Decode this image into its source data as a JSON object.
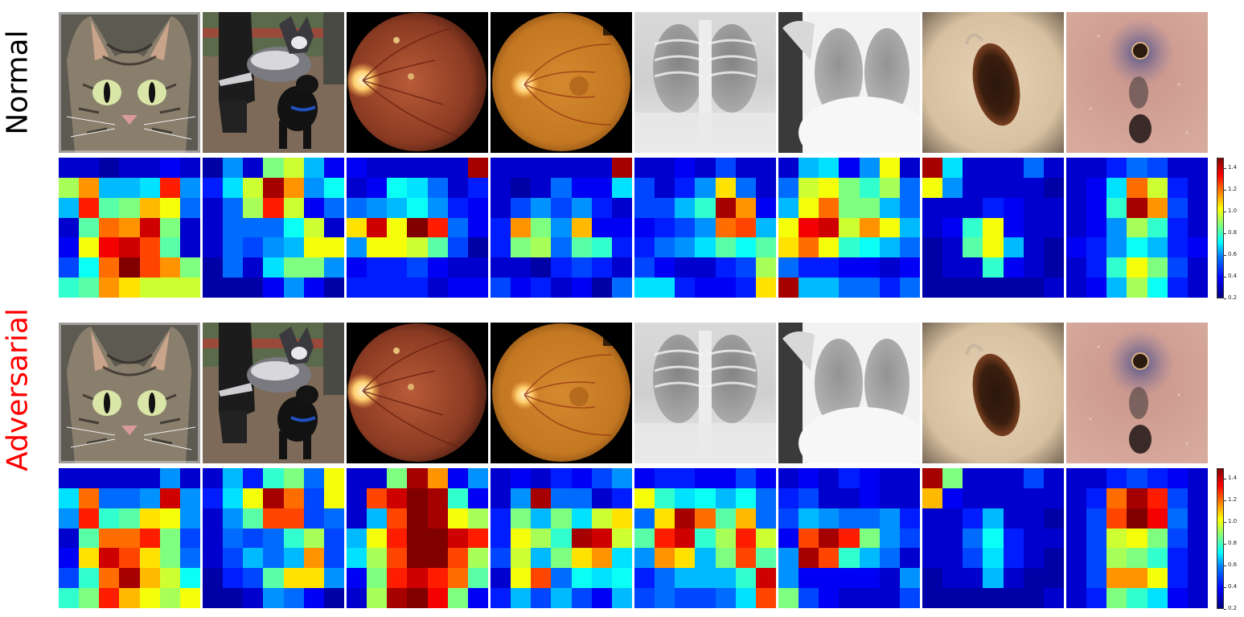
{
  "row_labels": {
    "normal": "Normal",
    "adversarial": "Adversarial"
  },
  "colors": {
    "adversarial_label": "#ff0000",
    "normal_label": "#000000"
  },
  "images": [
    "cat-photo",
    "dog-photo",
    "fundus-photo-1",
    "fundus-photo-2",
    "chest-xray-1",
    "chest-xray-2",
    "skin-lesion-1",
    "skin-lesion-2"
  ],
  "colorbar": {
    "ticks": [
      "1.4",
      "1.2",
      "1.0",
      "0.8",
      "0.6",
      "0.4",
      "0.2"
    ],
    "min": 0.2,
    "max": 1.5
  },
  "heatmaps": {
    "normal": [
      [
        [
          0.3,
          0.3,
          0.25,
          0.3,
          0.3,
          0.35,
          0.3
        ],
        [
          0.9,
          1.15,
          0.6,
          0.6,
          0.65,
          1.3,
          0.55
        ],
        [
          0.6,
          1.3,
          0.8,
          0.85,
          1.1,
          1.0,
          0.5
        ],
        [
          0.3,
          0.8,
          1.2,
          1.15,
          1.4,
          0.85,
          0.3
        ],
        [
          0.35,
          1.0,
          1.35,
          1.4,
          1.25,
          0.8,
          0.3
        ],
        [
          0.45,
          0.7,
          1.2,
          1.5,
          1.25,
          1.15,
          0.85
        ],
        [
          0.75,
          0.8,
          1.15,
          1.05,
          0.95,
          0.95,
          0.95
        ]
      ],
      [
        [
          0.25,
          0.55,
          0.3,
          0.85,
          0.95,
          0.6,
          0.35
        ],
        [
          0.4,
          0.65,
          0.95,
          1.45,
          1.15,
          0.55,
          0.7
        ],
        [
          0.3,
          0.5,
          0.9,
          1.3,
          0.95,
          0.35,
          0.5
        ],
        [
          0.3,
          0.5,
          0.5,
          0.5,
          0.7,
          0.95,
          0.3
        ],
        [
          0.3,
          0.5,
          0.45,
          0.55,
          0.6,
          1.0,
          1.0
        ],
        [
          0.25,
          0.5,
          0.3,
          0.65,
          0.85,
          0.85,
          0.55
        ],
        [
          0.25,
          0.25,
          0.25,
          0.35,
          0.55,
          0.35,
          0.25
        ]
      ],
      [
        [
          0.35,
          0.3,
          0.3,
          0.3,
          0.3,
          0.3,
          1.45
        ],
        [
          0.3,
          0.35,
          0.7,
          0.65,
          0.5,
          0.3,
          0.4
        ],
        [
          0.5,
          0.55,
          0.6,
          0.7,
          0.55,
          0.4,
          0.35
        ],
        [
          1.05,
          1.4,
          1.0,
          1.5,
          1.3,
          0.5,
          0.35
        ],
        [
          0.55,
          1.0,
          1.0,
          0.95,
          0.8,
          0.45,
          0.25
        ],
        [
          0.35,
          0.4,
          0.4,
          0.45,
          0.35,
          0.3,
          0.3
        ],
        [
          0.4,
          0.4,
          0.4,
          0.4,
          0.3,
          0.35,
          0.35
        ]
      ],
      [
        [
          0.3,
          0.3,
          0.3,
          0.3,
          0.3,
          0.3,
          1.45
        ],
        [
          0.3,
          0.25,
          0.3,
          0.5,
          0.35,
          0.35,
          0.65
        ],
        [
          0.3,
          0.45,
          0.55,
          0.45,
          0.55,
          0.4,
          0.3
        ],
        [
          0.4,
          1.15,
          0.85,
          0.55,
          1.1,
          0.35,
          0.35
        ],
        [
          0.4,
          0.85,
          0.9,
          0.5,
          0.8,
          0.75,
          0.4
        ],
        [
          0.3,
          0.3,
          0.25,
          0.4,
          0.45,
          0.4,
          0.3
        ],
        [
          0.45,
          0.35,
          0.4,
          0.3,
          0.35,
          0.25,
          0.5
        ]
      ],
      [
        [
          0.3,
          0.3,
          0.35,
          0.3,
          0.45,
          0.3,
          0.3
        ],
        [
          0.45,
          0.3,
          0.4,
          0.55,
          1.05,
          0.5,
          0.3
        ],
        [
          0.45,
          0.45,
          0.6,
          0.75,
          1.45,
          1.15,
          0.35
        ],
        [
          0.35,
          0.4,
          0.45,
          0.55,
          1.2,
          1.25,
          0.6
        ],
        [
          0.4,
          0.5,
          0.55,
          0.65,
          0.8,
          0.7,
          0.8
        ],
        [
          0.45,
          0.35,
          0.3,
          0.3,
          0.4,
          0.45,
          0.9
        ],
        [
          0.65,
          0.65,
          0.4,
          0.35,
          0.35,
          0.4,
          1.05
        ]
      ],
      [
        [
          0.3,
          0.6,
          0.65,
          0.35,
          0.55,
          1.0,
          0.3
        ],
        [
          0.5,
          0.95,
          1.0,
          0.85,
          0.75,
          0.9,
          0.5
        ],
        [
          0.6,
          1.0,
          1.2,
          0.85,
          0.85,
          0.6,
          0.5
        ],
        [
          1.0,
          1.35,
          1.4,
          0.95,
          1.15,
          1.0,
          0.6
        ],
        [
          1.05,
          1.2,
          1.0,
          0.75,
          0.7,
          0.6,
          0.5
        ],
        [
          0.5,
          0.4,
          0.4,
          0.35,
          0.35,
          0.3,
          0.35
        ],
        [
          1.45,
          0.6,
          0.6,
          0.5,
          0.5,
          0.4,
          0.5
        ]
      ],
      [
        [
          1.45,
          0.65,
          0.3,
          0.3,
          0.3,
          0.5,
          0.3
        ],
        [
          1.0,
          0.55,
          0.3,
          0.3,
          0.3,
          0.3,
          0.25
        ],
        [
          0.3,
          0.3,
          0.3,
          0.4,
          0.35,
          0.3,
          0.3
        ],
        [
          0.3,
          0.35,
          0.75,
          1.0,
          0.35,
          0.3,
          0.3
        ],
        [
          0.25,
          0.3,
          0.8,
          1.0,
          0.6,
          0.3,
          0.25
        ],
        [
          0.25,
          0.3,
          0.3,
          0.75,
          0.35,
          0.3,
          0.25
        ],
        [
          0.25,
          0.25,
          0.25,
          0.25,
          0.25,
          0.25,
          0.3
        ]
      ],
      [
        [
          0.3,
          0.3,
          0.4,
          0.5,
          0.45,
          0.3,
          0.3
        ],
        [
          0.3,
          0.35,
          0.65,
          1.2,
          0.95,
          0.4,
          0.3
        ],
        [
          0.3,
          0.35,
          0.75,
          1.45,
          1.15,
          0.45,
          0.3
        ],
        [
          0.3,
          0.35,
          0.55,
          0.9,
          0.75,
          0.4,
          0.3
        ],
        [
          0.35,
          0.4,
          0.55,
          0.7,
          0.6,
          0.4,
          0.35
        ],
        [
          0.3,
          0.4,
          0.75,
          1.0,
          0.85,
          0.45,
          0.3
        ],
        [
          0.3,
          0.35,
          0.6,
          0.9,
          0.7,
          0.4,
          0.3
        ]
      ]
    ],
    "adversarial": [
      [
        [
          0.3,
          0.3,
          0.3,
          0.3,
          0.3,
          0.55,
          0.3
        ],
        [
          0.65,
          1.2,
          0.5,
          0.5,
          0.55,
          1.4,
          0.55
        ],
        [
          0.55,
          1.3,
          0.75,
          0.8,
          1.05,
          1.0,
          0.55
        ],
        [
          0.3,
          0.8,
          1.2,
          1.2,
          1.3,
          0.85,
          0.45
        ],
        [
          0.35,
          1.05,
          1.4,
          1.25,
          1.05,
          0.85,
          0.5
        ],
        [
          0.45,
          0.75,
          1.2,
          1.45,
          1.1,
          0.95,
          0.7
        ],
        [
          0.75,
          0.85,
          1.3,
          1.1,
          1.0,
          0.9,
          1.0
        ]
      ],
      [
        [
          0.3,
          0.6,
          0.4,
          0.75,
          0.85,
          0.5,
          1.0
        ],
        [
          0.4,
          0.65,
          1.0,
          1.45,
          1.2,
          0.45,
          1.0
        ],
        [
          0.3,
          0.55,
          0.8,
          1.25,
          1.25,
          0.45,
          0.5
        ],
        [
          0.3,
          0.5,
          0.45,
          0.5,
          0.75,
          0.9,
          0.45
        ],
        [
          0.3,
          0.45,
          0.6,
          0.5,
          0.6,
          1.15,
          0.45
        ],
        [
          0.25,
          0.4,
          0.45,
          0.8,
          1.05,
          1.05,
          0.55
        ],
        [
          0.25,
          0.25,
          0.3,
          0.55,
          0.5,
          0.35,
          0.25
        ]
      ],
      [
        [
          0.3,
          0.3,
          0.85,
          1.45,
          1.15,
          0.35,
          0.55
        ],
        [
          0.3,
          1.25,
          1.4,
          1.5,
          1.45,
          0.75,
          0.35
        ],
        [
          0.3,
          0.6,
          1.25,
          1.5,
          1.45,
          1.0,
          0.9
        ],
        [
          0.6,
          1.0,
          1.3,
          1.5,
          1.5,
          1.4,
          1.3
        ],
        [
          0.65,
          0.9,
          1.25,
          1.5,
          1.5,
          1.25,
          0.9
        ],
        [
          0.35,
          0.85,
          1.3,
          1.4,
          1.3,
          1.2,
          0.8
        ],
        [
          0.3,
          0.9,
          1.45,
          1.5,
          1.35,
          0.85,
          0.35
        ]
      ],
      [
        [
          0.3,
          0.35,
          0.3,
          0.4,
          0.35,
          0.45,
          0.55
        ],
        [
          0.3,
          0.55,
          1.45,
          0.5,
          0.5,
          0.3,
          0.4
        ],
        [
          0.4,
          0.85,
          0.6,
          0.85,
          0.65,
          0.95,
          1.05
        ],
        [
          0.4,
          1.0,
          0.9,
          0.75,
          1.45,
          1.4,
          0.95
        ],
        [
          0.45,
          0.95,
          0.6,
          0.85,
          1.05,
          1.15,
          0.65
        ],
        [
          0.3,
          1.0,
          1.25,
          0.5,
          0.7,
          0.65,
          0.7
        ],
        [
          0.4,
          0.6,
          0.45,
          0.6,
          0.45,
          0.35,
          0.6
        ]
      ],
      [
        [
          0.35,
          0.4,
          0.4,
          0.35,
          0.35,
          0.45,
          0.35
        ],
        [
          1.0,
          0.75,
          0.65,
          0.7,
          0.6,
          0.7,
          0.5
        ],
        [
          0.5,
          1.05,
          1.45,
          1.2,
          0.8,
          1.1,
          0.5
        ],
        [
          0.8,
          1.3,
          1.4,
          0.75,
          0.9,
          1.3,
          0.95
        ],
        [
          0.55,
          1.15,
          1.05,
          0.6,
          0.85,
          1.25,
          0.8
        ],
        [
          0.4,
          0.5,
          0.6,
          0.6,
          0.6,
          0.75,
          1.4
        ],
        [
          0.45,
          0.5,
          0.45,
          0.45,
          0.5,
          0.65,
          1.25
        ]
      ],
      [
        [
          0.3,
          0.35,
          0.3,
          0.4,
          0.35,
          0.3,
          0.3
        ],
        [
          0.4,
          0.45,
          0.3,
          0.3,
          0.35,
          0.3,
          0.3
        ],
        [
          0.45,
          0.6,
          0.55,
          0.5,
          0.5,
          0.55,
          0.4
        ],
        [
          0.35,
          1.25,
          1.45,
          1.3,
          0.85,
          0.55,
          0.45
        ],
        [
          0.55,
          1.45,
          1.25,
          0.75,
          0.6,
          0.5,
          0.3
        ],
        [
          0.55,
          0.35,
          0.35,
          0.35,
          0.35,
          0.3,
          0.55
        ],
        [
          0.85,
          0.45,
          0.35,
          0.3,
          0.3,
          0.3,
          0.45
        ]
      ],
      [
        [
          1.45,
          0.85,
          0.3,
          0.3,
          0.3,
          0.45,
          0.3
        ],
        [
          1.1,
          0.35,
          0.3,
          0.3,
          0.3,
          0.3,
          0.3
        ],
        [
          0.3,
          0.3,
          0.4,
          0.6,
          0.3,
          0.3,
          0.25
        ],
        [
          0.3,
          0.3,
          0.5,
          0.7,
          0.4,
          0.3,
          0.3
        ],
        [
          0.3,
          0.3,
          0.45,
          0.65,
          0.4,
          0.3,
          0.25
        ],
        [
          0.25,
          0.3,
          0.3,
          0.6,
          0.3,
          0.25,
          0.25
        ],
        [
          0.25,
          0.25,
          0.25,
          0.25,
          0.25,
          0.25,
          0.3
        ]
      ],
      [
        [
          0.3,
          0.3,
          0.4,
          0.45,
          0.4,
          0.35,
          0.3
        ],
        [
          0.3,
          0.4,
          1.2,
          1.45,
          1.3,
          0.45,
          0.3
        ],
        [
          0.3,
          0.45,
          1.25,
          1.5,
          1.35,
          0.5,
          0.3
        ],
        [
          0.3,
          0.45,
          0.95,
          1.0,
          0.85,
          0.45,
          0.3
        ],
        [
          0.3,
          0.45,
          0.9,
          0.85,
          0.75,
          0.4,
          0.3
        ],
        [
          0.3,
          0.45,
          1.15,
          1.15,
          1.0,
          0.4,
          0.3
        ],
        [
          0.3,
          0.4,
          0.85,
          0.75,
          0.65,
          0.35,
          0.3
        ]
      ]
    ]
  }
}
